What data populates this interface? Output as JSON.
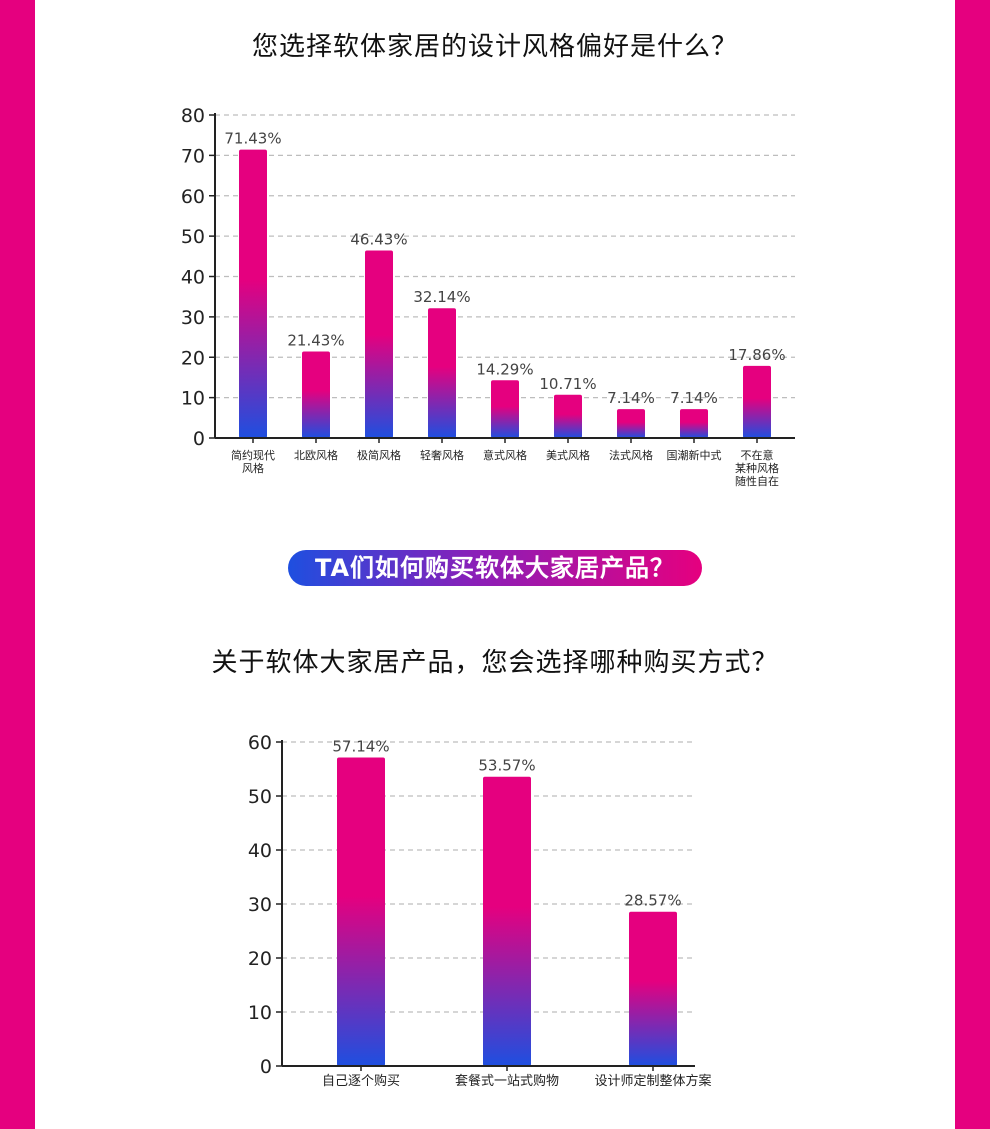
{
  "colors": {
    "side_bar": "#e5007f",
    "bar_top": "#e5007f",
    "bar_bottom": "#1e4fe0",
    "pill_left": "#1e4fe0",
    "pill_right": "#e5007f",
    "grid": "#bdbdbd",
    "axis": "#222222"
  },
  "section_pill": "TA们如何购买软体大家居产品？",
  "chart_data": [
    {
      "type": "bar",
      "title": "您选择软体家居的设计风格偏好是什么？",
      "categories": [
        [
          "简约现代",
          "风格"
        ],
        [
          "北欧风格"
        ],
        [
          "极简风格"
        ],
        [
          "轻奢风格"
        ],
        [
          "意式风格"
        ],
        [
          "美式风格"
        ],
        [
          "法式风格"
        ],
        [
          "国潮新中式"
        ],
        [
          "不在意",
          "某种风格",
          "随性自在"
        ]
      ],
      "values": [
        71.43,
        21.43,
        46.43,
        32.14,
        14.29,
        10.71,
        7.14,
        7.14,
        17.86
      ],
      "value_labels": [
        "71.43%",
        "21.43%",
        "46.43%",
        "32.14%",
        "14.29%",
        "10.71%",
        "7.14%",
        "7.14%",
        "17.86%"
      ],
      "yticks": [
        "0",
        "10",
        "20",
        "30",
        "40",
        "50",
        "60",
        "70",
        "80"
      ],
      "ylim": [
        0,
        80
      ],
      "grid": "dashed horizontal"
    },
    {
      "type": "bar",
      "title": "关于软体大家居产品，您会选择哪种购买方式？",
      "categories": [
        [
          "自己逐个购买"
        ],
        [
          "套餐式一站式购物"
        ],
        [
          "设计师定制整体方案"
        ]
      ],
      "values": [
        57.14,
        53.57,
        28.57
      ],
      "value_labels": [
        "57.14%",
        "53.57%",
        "28.57%"
      ],
      "yticks": [
        "0",
        "10",
        "20",
        "30",
        "40",
        "50",
        "60"
      ],
      "ylim": [
        0,
        60
      ],
      "grid": "dashed horizontal"
    }
  ]
}
